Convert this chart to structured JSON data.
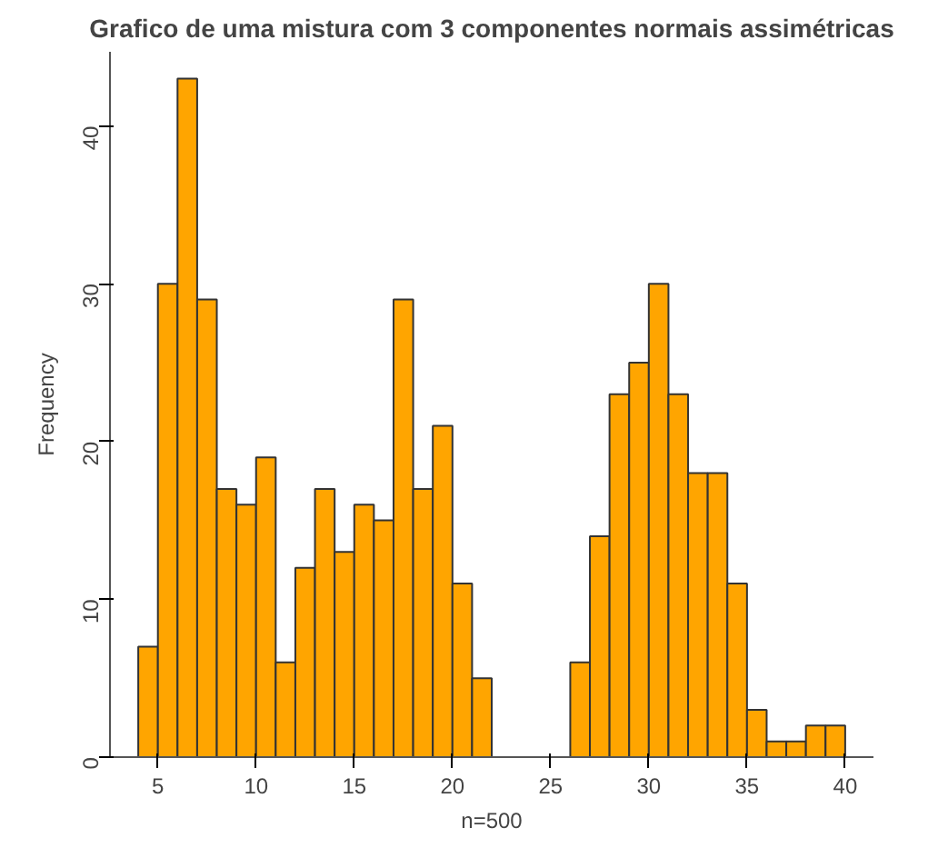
{
  "chart_data": {
    "type": "histogram",
    "title": "Grafico de uma mistura com 3 componentes normais assimétricas",
    "xlabel": "n=500",
    "ylabel": "Frequency",
    "bins": [
      4,
      5,
      6,
      7,
      8,
      9,
      10,
      11,
      12,
      13,
      14,
      15,
      16,
      17,
      18,
      19,
      20,
      21,
      22,
      23,
      24,
      25,
      26,
      27,
      28,
      29,
      30,
      31,
      32,
      33,
      34,
      35,
      36,
      37,
      38,
      39,
      40
    ],
    "values": [
      7,
      30,
      43,
      29,
      17,
      16,
      19,
      6,
      12,
      17,
      13,
      16,
      15,
      29,
      17,
      21,
      11,
      5,
      0,
      0,
      0,
      0,
      6,
      14,
      23,
      25,
      30,
      23,
      18,
      18,
      11,
      3,
      1,
      1,
      2,
      2
    ],
    "color": "#ffa500",
    "xlim": [
      2.56,
      41.44
    ],
    "ylim": [
      0,
      44.7
    ],
    "xticks": [
      5,
      10,
      15,
      20,
      25,
      30,
      35,
      40
    ],
    "yticks": [
      0,
      10,
      20,
      30,
      40
    ],
    "grid": false
  }
}
